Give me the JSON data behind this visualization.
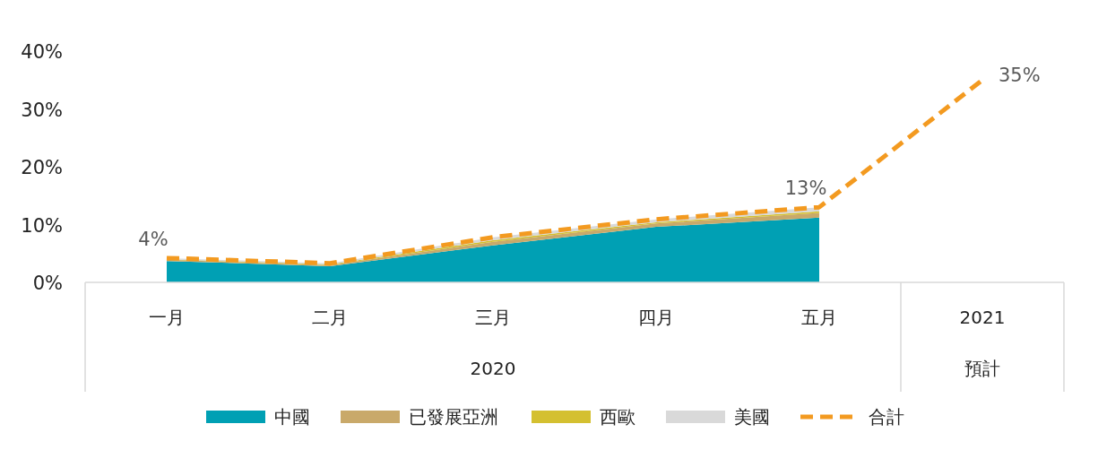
{
  "chart_data": {
    "type": "area",
    "stacked": true,
    "categories": [
      "一月",
      "二月",
      "三月",
      "四月",
      "五月",
      "2021"
    ],
    "annotations": [
      "2020",
      "預計"
    ],
    "ylim": [
      0,
      40
    ],
    "yticks": [
      {
        "value": 0,
        "label": "0%"
      },
      {
        "value": 10,
        "label": "10%"
      },
      {
        "value": 20,
        "label": "20%"
      },
      {
        "value": 30,
        "label": "30%"
      },
      {
        "value": 40,
        "label": "40%"
      }
    ],
    "grid": false,
    "legend": "bottom",
    "series": [
      {
        "name": "中國",
        "color": "#00a0b4",
        "values": [
          3.7,
          2.8,
          6.4,
          9.6,
          11.2,
          null
        ]
      },
      {
        "name": "已發展亞洲",
        "color": "#c9a96a",
        "values": [
          0.2,
          0.2,
          0.6,
          0.6,
          0.8,
          null
        ]
      },
      {
        "name": "西歐",
        "color": "#d4c030",
        "values": [
          0.1,
          0.1,
          0.3,
          0.2,
          0.3,
          null
        ]
      },
      {
        "name": "美國",
        "color": "#d9d9d9",
        "values": [
          0.2,
          0.2,
          0.5,
          0.5,
          0.7,
          null
        ]
      },
      {
        "name": "合計",
        "type": "line",
        "line_style": "dashed",
        "color": "#f39a20",
        "values": [
          4.2,
          3.3,
          7.8,
          10.9,
          13.0,
          35
        ],
        "value_labels": [
          "4%",
          null,
          null,
          null,
          "13%",
          "35%"
        ]
      }
    ]
  }
}
